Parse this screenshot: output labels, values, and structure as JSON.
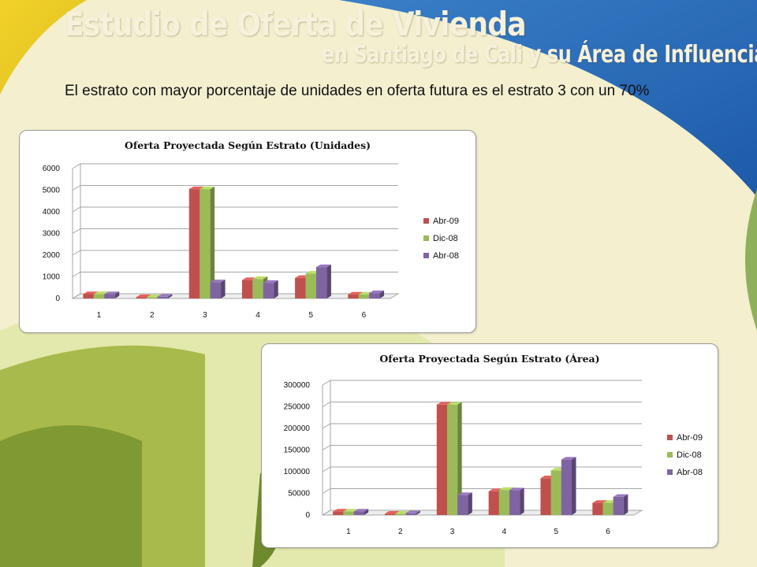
{
  "header": {
    "title": "Estudio de Oferta de Vivienda",
    "subtitle": "en Santiago de Cali y su Área de Influencia"
  },
  "body_text": "El estrato con mayor porcentaje de unidades en oferta futura es el estrato 3 con un 70%",
  "colors": {
    "Abr-09": "#c0504d",
    "Dic-08": "#9bbb59",
    "Abr-08": "#8064a2"
  },
  "chart_data": [
    {
      "type": "bar",
      "title": "Oferta Proyectada Según Estrato (Unidades)",
      "categories": [
        "1",
        "2",
        "3",
        "4",
        "5",
        "6"
      ],
      "series": [
        {
          "name": "Abr-09",
          "values": [
            200,
            60,
            5050,
            850,
            950,
            180
          ]
        },
        {
          "name": "Dic-08",
          "values": [
            200,
            60,
            5050,
            900,
            1150,
            180
          ]
        },
        {
          "name": "Abr-08",
          "values": [
            200,
            80,
            750,
            720,
            1450,
            250
          ]
        }
      ],
      "ylim": [
        0,
        6000
      ],
      "yticks": [
        "0",
        "1000",
        "2000",
        "3000",
        "4000",
        "5000",
        "6000"
      ],
      "legend": "right",
      "grid": true
    },
    {
      "type": "bar",
      "title": "Oferta Proyectada Según Estrato (Área)",
      "categories": [
        "1",
        "2",
        "3",
        "4",
        "5",
        "6"
      ],
      "series": [
        {
          "name": "Abr-09",
          "values": [
            8000,
            3000,
            255000,
            55000,
            85000,
            28000
          ]
        },
        {
          "name": "Dic-08",
          "values": [
            8000,
            3000,
            255000,
            58000,
            103000,
            28000
          ]
        },
        {
          "name": "Abr-08",
          "values": [
            8000,
            4000,
            46000,
            57000,
            128000,
            42000
          ]
        }
      ],
      "ylim": [
        0,
        300000
      ],
      "yticks": [
        "0",
        "50000",
        "100000",
        "150000",
        "200000",
        "250000",
        "300000"
      ],
      "legend": "right",
      "grid": true
    }
  ]
}
